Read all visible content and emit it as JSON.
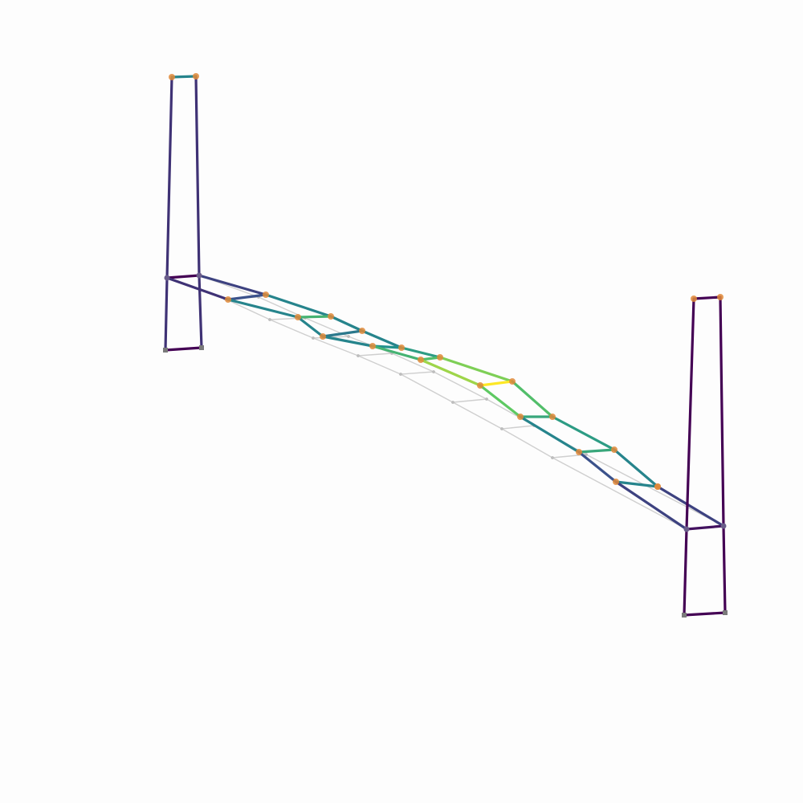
{
  "figure": {
    "background": "#fdfdfd",
    "reference_color": "#cfcfcf",
    "node_color": "#e08a3a",
    "support_color": "#7a7a7a",
    "colormap": "viridis",
    "colormap_stops": [
      "#440154",
      "#3b528b",
      "#21918c",
      "#5ec962",
      "#fde725"
    ]
  },
  "structure": {
    "nodes": [
      {
        "id": "tl0",
        "kind": "support"
      },
      {
        "id": "tl1",
        "kind": "support"
      },
      {
        "id": "tl2",
        "kind": "joint"
      },
      {
        "id": "tl3",
        "kind": "joint"
      },
      {
        "id": "tl4",
        "kind": "top"
      },
      {
        "id": "tl5",
        "kind": "top"
      },
      {
        "id": "tr0",
        "kind": "support"
      },
      {
        "id": "tr1",
        "kind": "support"
      },
      {
        "id": "tr2",
        "kind": "joint"
      },
      {
        "id": "tr3",
        "kind": "joint"
      },
      {
        "id": "tr4",
        "kind": "top"
      },
      {
        "id": "tr5",
        "kind": "top"
      },
      {
        "id": "d0",
        "kind": "deck"
      },
      {
        "id": "d1",
        "kind": "deck"
      },
      {
        "id": "d2",
        "kind": "deck"
      },
      {
        "id": "d3",
        "kind": "deck"
      },
      {
        "id": "d4",
        "kind": "deck"
      },
      {
        "id": "d5",
        "kind": "deck"
      },
      {
        "id": "d6",
        "kind": "deck"
      },
      {
        "id": "d7",
        "kind": "deck"
      },
      {
        "id": "d8",
        "kind": "deck"
      },
      {
        "id": "d9",
        "kind": "deck"
      },
      {
        "id": "d10",
        "kind": "deck"
      },
      {
        "id": "d11",
        "kind": "deck"
      },
      {
        "id": "d12",
        "kind": "deck"
      },
      {
        "id": "d13",
        "kind": "deck"
      },
      {
        "id": "d14",
        "kind": "deck"
      },
      {
        "id": "d15",
        "kind": "deck"
      },
      {
        "id": "d16",
        "kind": "deck"
      },
      {
        "id": "d17",
        "kind": "deck"
      },
      {
        "id": "d18",
        "kind": "deck"
      }
    ],
    "members": [
      {
        "a": "tl0",
        "b": "tl1",
        "v": 0.0
      },
      {
        "a": "tl0",
        "b": "tl2",
        "v": 0.15
      },
      {
        "a": "tl1",
        "b": "tl3",
        "v": 0.15
      },
      {
        "a": "tl2",
        "b": "tl4",
        "v": 0.15
      },
      {
        "a": "tl3",
        "b": "tl5",
        "v": 0.15
      },
      {
        "a": "tl4",
        "b": "tl5",
        "v": 0.45
      },
      {
        "a": "tl2",
        "b": "tl3",
        "v": 0.0
      },
      {
        "a": "tl2",
        "b": "d0",
        "v": 0.15
      },
      {
        "a": "tl3",
        "b": "d1",
        "v": 0.2
      },
      {
        "a": "d0",
        "b": "d1",
        "v": 0.25
      },
      {
        "a": "d0",
        "b": "d2",
        "v": 0.45
      },
      {
        "a": "d1",
        "b": "d3",
        "v": 0.45
      },
      {
        "a": "d2",
        "b": "d3",
        "v": 0.65
      },
      {
        "a": "d2",
        "b": "d4",
        "v": 0.45
      },
      {
        "a": "d3",
        "b": "d5",
        "v": 0.45
      },
      {
        "a": "d4",
        "b": "d5",
        "v": 0.4
      },
      {
        "a": "d4",
        "b": "d6",
        "v": 0.45
      },
      {
        "a": "d5",
        "b": "d7",
        "v": 0.45
      },
      {
        "a": "d6",
        "b": "d7",
        "v": 0.5
      },
      {
        "a": "d6",
        "b": "d8",
        "v": 0.65
      },
      {
        "a": "d7",
        "b": "d9",
        "v": 0.55
      },
      {
        "a": "d8",
        "b": "d9",
        "v": 0.7
      },
      {
        "a": "d8",
        "b": "d10",
        "v": 0.85
      },
      {
        "a": "d9",
        "b": "d11",
        "v": 0.8
      },
      {
        "a": "d10",
        "b": "d11",
        "v": 1.0
      },
      {
        "a": "d10",
        "b": "d12",
        "v": 0.75
      },
      {
        "a": "d11",
        "b": "d13",
        "v": 0.7
      },
      {
        "a": "d12",
        "b": "d13",
        "v": 0.6
      },
      {
        "a": "d12",
        "b": "d14",
        "v": 0.45
      },
      {
        "a": "d13",
        "b": "d15",
        "v": 0.55
      },
      {
        "a": "d14",
        "b": "d15",
        "v": 0.6
      },
      {
        "a": "d14",
        "b": "d16",
        "v": 0.25
      },
      {
        "a": "d15",
        "b": "d17",
        "v": 0.45
      },
      {
        "a": "d16",
        "b": "d17",
        "v": 0.45
      },
      {
        "a": "d16",
        "b": "tr2",
        "v": 0.2
      },
      {
        "a": "d17",
        "b": "tr3",
        "v": 0.2
      },
      {
        "a": "tr2",
        "b": "tr3",
        "v": 0.05
      },
      {
        "a": "tr0",
        "b": "tr1",
        "v": 0.0
      },
      {
        "a": "tr0",
        "b": "tr2",
        "v": 0.0
      },
      {
        "a": "tr1",
        "b": "tr3",
        "v": 0.0
      },
      {
        "a": "tr2",
        "b": "tr4",
        "v": 0.0
      },
      {
        "a": "tr3",
        "b": "tr5",
        "v": 0.0
      },
      {
        "a": "tr4",
        "b": "tr5",
        "v": 0.0
      }
    ],
    "reference_members": [
      [
        "tl4",
        "tl5"
      ],
      [
        "tl2",
        "r0"
      ],
      [
        "tl3",
        "r1"
      ],
      [
        "r0",
        "r1"
      ],
      [
        "r0",
        "r2"
      ],
      [
        "r1",
        "r3"
      ],
      [
        "r2",
        "r3"
      ],
      [
        "r2",
        "r4"
      ],
      [
        "r3",
        "r5"
      ],
      [
        "r4",
        "r5"
      ],
      [
        "r4",
        "r6"
      ],
      [
        "r5",
        "r7"
      ],
      [
        "r6",
        "r7"
      ],
      [
        "r6",
        "r8"
      ],
      [
        "r7",
        "r9"
      ],
      [
        "r8",
        "r9"
      ],
      [
        "r8",
        "r10"
      ],
      [
        "r9",
        "r11"
      ],
      [
        "r10",
        "r11"
      ],
      [
        "r10",
        "r12"
      ],
      [
        "r11",
        "r13"
      ],
      [
        "r12",
        "r13"
      ],
      [
        "r12",
        "r14"
      ],
      [
        "r13",
        "r15"
      ],
      [
        "r14",
        "r15"
      ],
      [
        "r14",
        "tr2"
      ],
      [
        "r15",
        "tr3"
      ]
    ]
  }
}
